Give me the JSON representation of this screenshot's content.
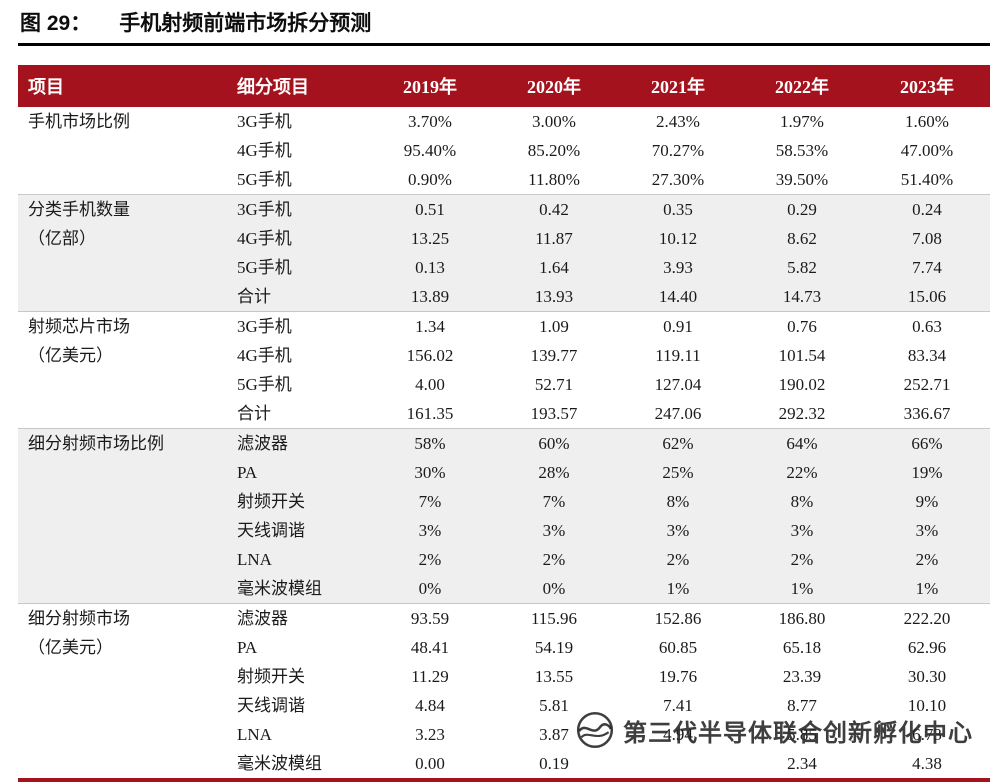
{
  "title": {
    "figure_label": "图 29：",
    "text": "手机射频前端市场拆分预测"
  },
  "table": {
    "headers": [
      "项目",
      "细分项目",
      "2019年",
      "2020年",
      "2021年",
      "2022年",
      "2023年"
    ],
    "groups": [
      {
        "name_lines": [
          "手机市场比例"
        ],
        "rows": [
          {
            "sub": "3G手机",
            "values": [
              "3.70%",
              "3.00%",
              "2.43%",
              "1.97%",
              "1.60%"
            ]
          },
          {
            "sub": "4G手机",
            "values": [
              "95.40%",
              "85.20%",
              "70.27%",
              "58.53%",
              "47.00%"
            ]
          },
          {
            "sub": "5G手机",
            "values": [
              "0.90%",
              "11.80%",
              "27.30%",
              "39.50%",
              "51.40%"
            ]
          }
        ]
      },
      {
        "name_lines": [
          "分类手机数量",
          "（亿部）"
        ],
        "rows": [
          {
            "sub": "3G手机",
            "values": [
              "0.51",
              "0.42",
              "0.35",
              "0.29",
              "0.24"
            ]
          },
          {
            "sub": "4G手机",
            "values": [
              "13.25",
              "11.87",
              "10.12",
              "8.62",
              "7.08"
            ]
          },
          {
            "sub": "5G手机",
            "values": [
              "0.13",
              "1.64",
              "3.93",
              "5.82",
              "7.74"
            ]
          },
          {
            "sub": "合计",
            "values": [
              "13.89",
              "13.93",
              "14.40",
              "14.73",
              "15.06"
            ]
          }
        ]
      },
      {
        "name_lines": [
          "射频芯片市场",
          "（亿美元）"
        ],
        "rows": [
          {
            "sub": "3G手机",
            "values": [
              "1.34",
              "1.09",
              "0.91",
              "0.76",
              "0.63"
            ]
          },
          {
            "sub": "4G手机",
            "values": [
              "156.02",
              "139.77",
              "119.11",
              "101.54",
              "83.34"
            ]
          },
          {
            "sub": "5G手机",
            "values": [
              "4.00",
              "52.71",
              "127.04",
              "190.02",
              "252.71"
            ]
          },
          {
            "sub": "合计",
            "values": [
              "161.35",
              "193.57",
              "247.06",
              "292.32",
              "336.67"
            ]
          }
        ]
      },
      {
        "name_lines": [
          "细分射频市场比例"
        ],
        "rows": [
          {
            "sub": "滤波器",
            "values": [
              "58%",
              "60%",
              "62%",
              "64%",
              "66%"
            ]
          },
          {
            "sub": "PA",
            "values": [
              "30%",
              "28%",
              "25%",
              "22%",
              "19%"
            ]
          },
          {
            "sub": "射频开关",
            "values": [
              "7%",
              "7%",
              "8%",
              "8%",
              "9%"
            ]
          },
          {
            "sub": "天线调谐",
            "values": [
              "3%",
              "3%",
              "3%",
              "3%",
              "3%"
            ]
          },
          {
            "sub": "LNA",
            "values": [
              "2%",
              "2%",
              "2%",
              "2%",
              "2%"
            ]
          },
          {
            "sub": "毫米波模组",
            "values": [
              "0%",
              "0%",
              "1%",
              "1%",
              "1%"
            ]
          }
        ]
      },
      {
        "name_lines": [
          "细分射频市场",
          "（亿美元）"
        ],
        "rows": [
          {
            "sub": "滤波器",
            "values": [
              "93.59",
              "115.96",
              "152.86",
              "186.80",
              "222.20"
            ]
          },
          {
            "sub": "PA",
            "values": [
              "48.41",
              "54.19",
              "60.85",
              "65.18",
              "62.96"
            ]
          },
          {
            "sub": "射频开关",
            "values": [
              "11.29",
              "13.55",
              "19.76",
              "23.39",
              "30.30"
            ]
          },
          {
            "sub": "天线调谐",
            "values": [
              "4.84",
              "5.81",
              "7.41",
              "8.77",
              "10.10"
            ]
          },
          {
            "sub": "LNA",
            "values": [
              "3.23",
              "3.87",
              "4.94",
              "5.85",
              "6.73"
            ]
          },
          {
            "sub": "毫米波模组",
            "values": [
              "0.00",
              "0.19",
              "",
              "2.34",
              "4.38"
            ]
          }
        ]
      }
    ]
  },
  "watermark": {
    "text": "第三代半导体联合创新孵化中心"
  },
  "colors": {
    "header_red": "#a3121d",
    "shaded_row": "#efefef",
    "title_rule": "#000000"
  }
}
